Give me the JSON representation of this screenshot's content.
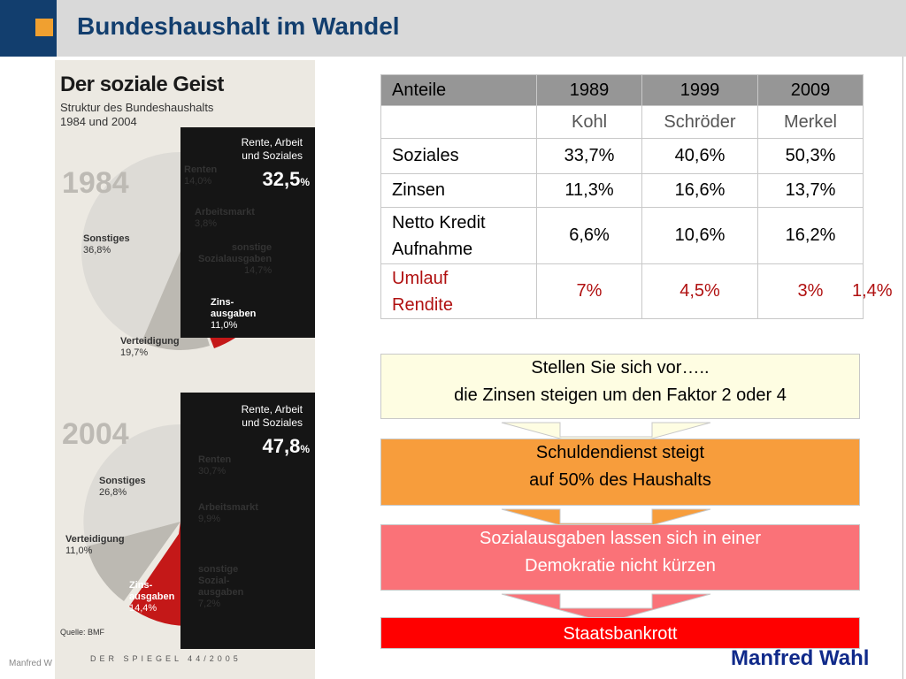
{
  "header": {
    "title": "Bundeshaushalt im Wandel"
  },
  "colors": {
    "brand": "#123e6e",
    "accent": "#f0a030",
    "header_bg": "#d9d9d9",
    "rendite": "#b01010",
    "footer_name": "#102a8a"
  },
  "magazine": {
    "title": "Der soziale Geist",
    "subtitle_line1": "Struktur des Bundeshaushalts",
    "subtitle_line2": "1984 und 2004",
    "chart1": {
      "year": "1984",
      "highlight_label_1": "Rente, Arbeit",
      "highlight_label_2": "und Soziales",
      "highlight_pct": "32,5",
      "renten_name": "Renten",
      "renten_pct": "14,0%",
      "arbeitsmarkt_name": "Arbeitsmarkt",
      "arbeitsmarkt_pct": "3,8%",
      "sonstige_sozial_1": "sonstige",
      "sonstige_sozial_2": "Sozialausgaben",
      "sonstige_sozial_pct": "14,7%",
      "zins_1": "Zins-",
      "zins_2": "ausgaben",
      "zins_pct": "11,0%",
      "vert_name": "Verteidigung",
      "vert_pct": "19,7%",
      "sonst_name": "Sonstiges",
      "sonst_pct": "36,8%"
    },
    "chart2": {
      "year": "2004",
      "highlight_label_1": "Rente, Arbeit",
      "highlight_label_2": "und Soziales",
      "highlight_pct": "47,8",
      "renten_name": "Renten",
      "renten_pct": "30,7%",
      "arbeitsmarkt_name": "Arbeitsmarkt",
      "arbeitsmarkt_pct": "9,9%",
      "sonstige_sozial_1": "sonstige",
      "sonstige_sozial_2": "Sozial-",
      "sonstige_sozial_3": "ausgaben",
      "sonstige_sozial_pct": "7,2%",
      "zins_1": "Zins-",
      "zins_2": "ausgaben",
      "zins_pct": "14,4%",
      "vert_name": "Verteidigung",
      "vert_pct": "11,0%",
      "sonst_name": "Sonstiges",
      "sonst_pct": "26,8%"
    },
    "source": "Quelle: BMF",
    "footer": "DER SPIEGEL 44/2005"
  },
  "table": {
    "header": [
      "Anteile",
      "1989",
      "1999",
      "2009"
    ],
    "chancellors": [
      "",
      "Kohl",
      "Schröder",
      "Merkel"
    ],
    "rows": [
      {
        "label": "Soziales",
        "values": [
          "33,7%",
          "40,6%",
          "50,3%"
        ]
      },
      {
        "label": "Zinsen",
        "values": [
          "11,3%",
          "16,6%",
          "13,7%"
        ]
      },
      {
        "label_1": "Netto Kredit",
        "label_2": "Aufnahme",
        "values": [
          "6,6%",
          "10,6%",
          "16,2%"
        ]
      },
      {
        "label_1": "Umlauf",
        "label_2": "Rendite",
        "values": [
          "7%",
          "4,5%",
          "3%"
        ],
        "extra": "1,4%"
      }
    ]
  },
  "flow": {
    "box1_line1": "Stellen Sie sich vor…..",
    "box1_line2": "die Zinsen steigen um den Faktor 2 oder 4",
    "box2_line1": "Schuldendienst steigt",
    "box2_line2": "auf 50% des Haushalts",
    "box3_line1": "Sozialausgaben lassen sich in einer",
    "box3_line2": "Demokratie nicht kürzen",
    "box4": "Staatsbankrott"
  },
  "footer": {
    "left": "Manfred W",
    "right": "Manfred Wahl"
  }
}
